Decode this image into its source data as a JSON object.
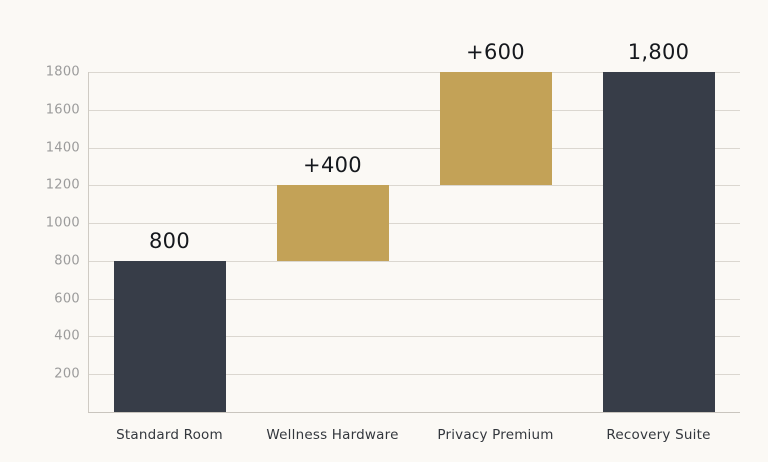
{
  "chart_data": {
    "type": "waterfall",
    "title": "",
    "xlabel": "",
    "ylabel": "",
    "categories": [
      "Standard Room",
      "Wellness Hardware",
      "Privacy Premium",
      "Recovery Suite"
    ],
    "bars": [
      {
        "category": "Standard Room",
        "start": 0,
        "end": 800,
        "label": "800",
        "role": "total"
      },
      {
        "category": "Wellness Hardware",
        "start": 800,
        "end": 1200,
        "label": "+400",
        "role": "increase"
      },
      {
        "category": "Privacy Premium",
        "start": 1200,
        "end": 1800,
        "label": "+600",
        "role": "increase"
      },
      {
        "category": "Recovery Suite",
        "start": 0,
        "end": 1800,
        "label": "1,800",
        "role": "total"
      }
    ],
    "y_ticks": [
      200,
      400,
      600,
      800,
      1000,
      1200,
      1400,
      1600,
      1800
    ],
    "ylim": [
      0,
      1800
    ],
    "grid": true,
    "legend": "none",
    "colors": {
      "total_bar": "#373d48",
      "increase_bar": "#c3a257",
      "background": "#fbf9f5",
      "gridline": "#dbd7d0",
      "tick_text": "#9b9b9b",
      "value_text": "#15181d",
      "category_text": "#33373d"
    }
  }
}
